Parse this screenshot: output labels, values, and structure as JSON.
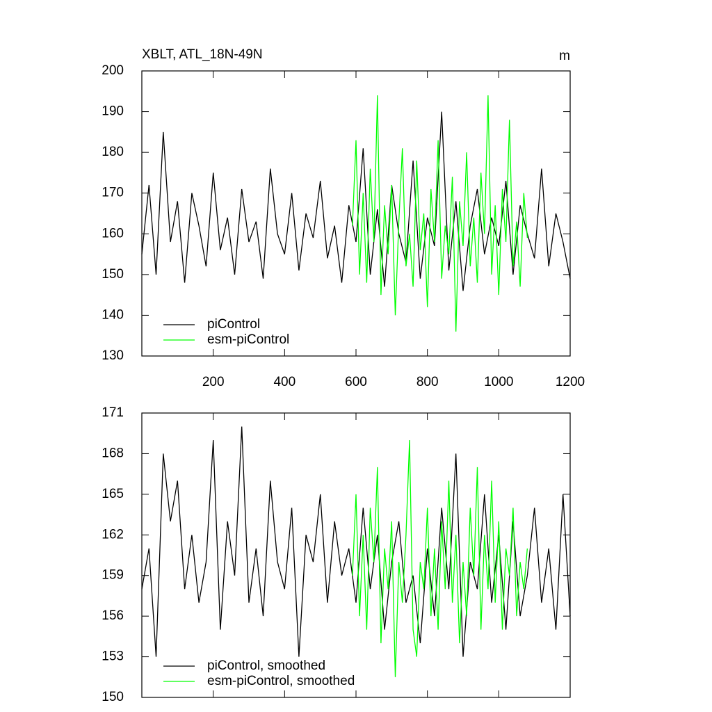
{
  "chart_data": [
    {
      "type": "line",
      "title": "XBLT, ATL_18N-49N",
      "units": "m",
      "xlim": [
        0,
        1200
      ],
      "xticks": [
        200,
        400,
        600,
        800,
        1000,
        1200
      ],
      "ylim": [
        130,
        200
      ],
      "yticks": [
        130,
        140,
        150,
        160,
        170,
        180,
        190,
        200
      ],
      "series": [
        {
          "name": "piControl",
          "color": "#000000",
          "x": [
            0,
            20,
            40,
            60,
            80,
            100,
            120,
            140,
            160,
            180,
            200,
            220,
            240,
            260,
            280,
            300,
            320,
            340,
            360,
            380,
            400,
            420,
            440,
            460,
            480,
            500,
            520,
            540,
            560,
            580,
            600,
            620,
            640,
            660,
            680,
            700,
            720,
            740,
            760,
            780,
            800,
            820,
            840,
            860,
            880,
            900,
            920,
            940,
            960,
            980,
            1000,
            1020,
            1040,
            1060,
            1080,
            1100,
            1120,
            1140,
            1160,
            1180,
            1200
          ],
          "values": [
            155,
            172,
            150,
            185,
            158,
            168,
            148,
            170,
            162,
            152,
            175,
            156,
            164,
            150,
            171,
            158,
            163,
            149,
            176,
            160,
            155,
            170,
            151,
            165,
            159,
            173,
            154,
            162,
            148,
            167,
            158,
            181,
            150,
            166,
            147,
            172,
            160,
            153,
            178,
            149,
            164,
            157,
            190,
            151,
            168,
            146,
            162,
            171,
            155,
            164,
            157,
            173,
            150,
            167,
            160,
            154,
            176,
            152,
            165,
            158,
            149
          ]
        },
        {
          "name": "esm-piControl",
          "color": "#00ff00",
          "x": [
            590,
            600,
            610,
            620,
            630,
            640,
            650,
            660,
            670,
            680,
            690,
            700,
            710,
            720,
            730,
            740,
            750,
            760,
            770,
            780,
            790,
            800,
            810,
            820,
            830,
            840,
            850,
            860,
            870,
            880,
            890,
            900,
            910,
            920,
            930,
            940,
            950,
            960,
            970,
            980,
            990,
            1000,
            1010,
            1020,
            1030,
            1040,
            1050,
            1060,
            1070,
            1080
          ],
          "values": [
            162,
            183,
            150,
            170,
            148,
            176,
            158,
            194,
            145,
            167,
            155,
            172,
            140,
            163,
            181,
            152,
            160,
            147,
            178,
            156,
            165,
            142,
            171,
            158,
            183,
            149,
            162,
            155,
            174,
            136,
            168,
            157,
            180,
            152,
            164,
            148,
            175,
            160,
            194,
            150,
            167,
            145,
            171,
            158,
            188,
            152,
            163,
            147,
            170,
            159
          ]
        }
      ]
    },
    {
      "type": "line",
      "xlim": [
        0,
        1200
      ],
      "xticks": [
        200,
        400,
        600,
        800,
        1000,
        1200
      ],
      "ylim": [
        150,
        171
      ],
      "yticks": [
        150,
        153,
        156,
        159,
        162,
        165,
        168,
        171
      ],
      "series": [
        {
          "name": "piControl, smoothed",
          "color": "#000000",
          "x": [
            0,
            20,
            40,
            60,
            80,
            100,
            120,
            140,
            160,
            180,
            200,
            220,
            240,
            260,
            280,
            300,
            320,
            340,
            360,
            380,
            400,
            420,
            440,
            460,
            480,
            500,
            520,
            540,
            560,
            580,
            600,
            620,
            640,
            660,
            680,
            700,
            720,
            740,
            760,
            780,
            800,
            820,
            840,
            860,
            880,
            900,
            920,
            940,
            960,
            980,
            1000,
            1020,
            1040,
            1060,
            1080,
            1100,
            1120,
            1140,
            1160,
            1180,
            1200
          ],
          "values": [
            158,
            161,
            153,
            168,
            163,
            166,
            158,
            162,
            157,
            160,
            169,
            155,
            163,
            159,
            170,
            157,
            161,
            156,
            166,
            160,
            158,
            164,
            153,
            162,
            160,
            165,
            157,
            163,
            159,
            161,
            157,
            164,
            158,
            162,
            155,
            160,
            163,
            157,
            159,
            154,
            161,
            156,
            164,
            158,
            168,
            153,
            160,
            158,
            165,
            157,
            162,
            155,
            163,
            156,
            159,
            164,
            157,
            161,
            155,
            165,
            156
          ]
        },
        {
          "name": "esm-piControl, smoothed",
          "color": "#00ff00",
          "x": [
            590,
            600,
            610,
            620,
            630,
            640,
            650,
            660,
            670,
            680,
            690,
            700,
            710,
            720,
            730,
            740,
            750,
            760,
            770,
            780,
            790,
            800,
            810,
            820,
            830,
            840,
            850,
            860,
            870,
            880,
            890,
            900,
            910,
            920,
            930,
            940,
            950,
            960,
            970,
            980,
            990,
            1000,
            1010,
            1020,
            1030,
            1040,
            1050,
            1060,
            1070,
            1080
          ],
          "values": [
            159,
            165,
            156,
            162,
            155,
            164,
            160,
            167,
            154,
            161,
            158,
            163,
            151.5,
            160,
            157,
            162,
            169,
            155,
            153,
            160,
            158,
            164,
            156,
            161,
            155,
            163,
            158,
            166,
            157,
            162,
            154,
            160,
            156,
            164,
            159,
            167,
            155,
            162,
            158,
            166,
            157,
            163,
            155,
            161,
            159,
            164,
            156,
            160,
            158,
            161
          ]
        }
      ]
    }
  ]
}
